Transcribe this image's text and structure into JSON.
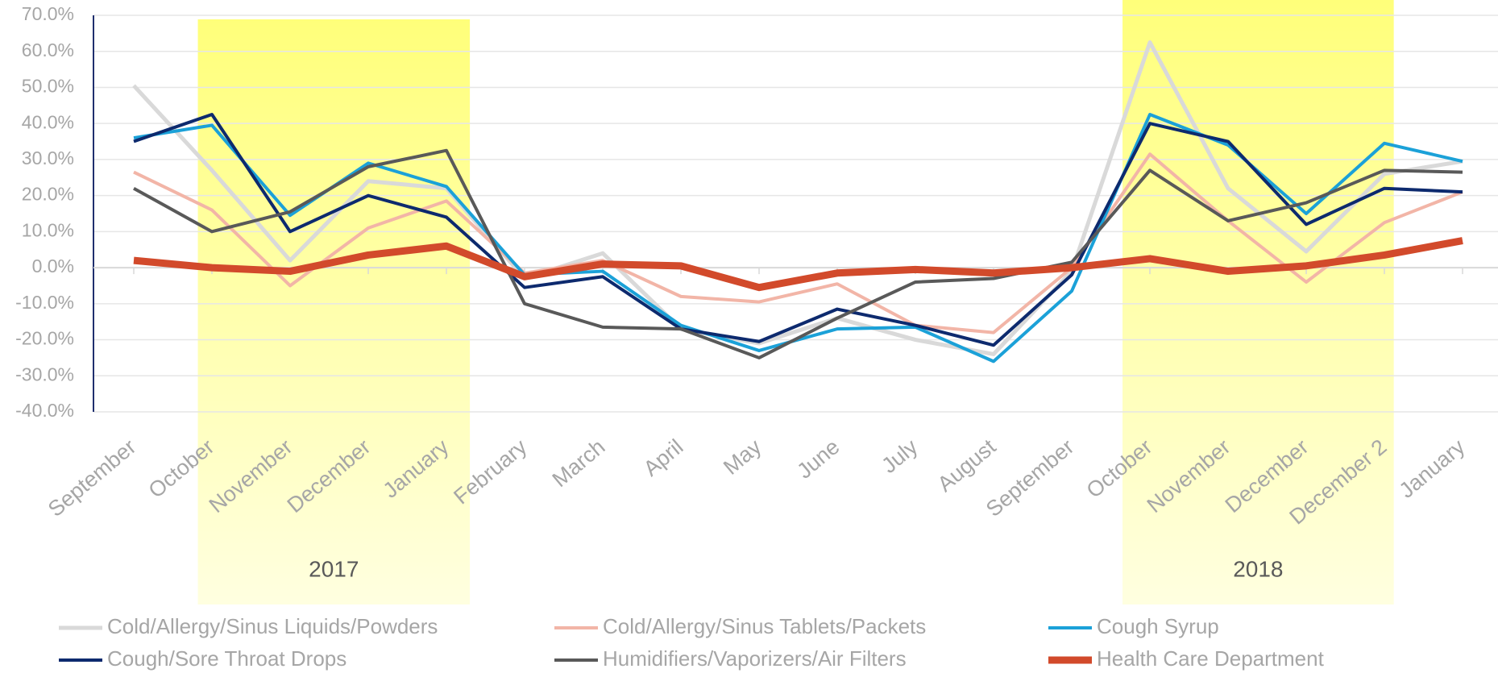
{
  "chart_data": {
    "type": "line",
    "categories": [
      "September",
      "October",
      "November",
      "December",
      "January",
      "February",
      "March",
      "April",
      "May",
      "June",
      "July",
      "August",
      "September",
      "October",
      "November",
      "December",
      "December 2",
      "January"
    ],
    "annotations": [
      "2017",
      "2018"
    ],
    "series": [
      {
        "name": "Cold/Allergy/Sinus Liquids/Powders",
        "color": "#d9d9d9",
        "width": 5,
        "values": [
          50.5,
          27,
          2,
          24,
          22,
          -3,
          4,
          -17,
          -21,
          -14,
          -20,
          -24,
          -1,
          62.5,
          22,
          4.5,
          26,
          29.5
        ]
      },
      {
        "name": "Cold/Allergy/Sinus Tablets/Packets",
        "color": "#f2b5a7",
        "width": 4,
        "values": [
          26.5,
          16,
          -5,
          11,
          18.5,
          -1.5,
          2,
          -8,
          -9.5,
          -4.5,
          -16,
          -18,
          0,
          31.5,
          13,
          -4,
          12.5,
          21
        ]
      },
      {
        "name": "Cough Syrup",
        "color": "#1ba1d8",
        "width": 4,
        "values": [
          36,
          39.5,
          14.5,
          29,
          22.5,
          -2,
          -1,
          -16,
          -23,
          -17,
          -16.5,
          -26,
          -6.5,
          42.5,
          34,
          15,
          34.5,
          29.5
        ]
      },
      {
        "name": "Cough/Sore Throat Drops",
        "color": "#0d2a6e",
        "width": 4,
        "values": [
          35,
          42.5,
          10,
          20,
          14,
          -5.5,
          -2.5,
          -17,
          -20.5,
          -11.5,
          -16,
          -21.5,
          -2,
          40,
          35,
          12,
          22,
          21
        ]
      },
      {
        "name": "Humidifiers/Vaporizers/Air Filters",
        "color": "#595959",
        "width": 4,
        "values": [
          22,
          10,
          15.5,
          28,
          32.5,
          -10,
          -16.5,
          -17,
          -25,
          -14,
          -4,
          -3,
          1.5,
          27,
          13,
          18,
          27,
          26.5
        ]
      },
      {
        "name": "Health Care Department",
        "color": "#d24a2b",
        "width": 9,
        "values": [
          2,
          0,
          -1,
          3.5,
          6,
          -2.5,
          1,
          0.5,
          -5.5,
          -1.5,
          -0.5,
          -1.5,
          0,
          2.5,
          -1,
          0.5,
          3.5,
          7.5
        ]
      }
    ],
    "ylim": [
      -40,
      70
    ],
    "yticks": [
      {
        "value": -40,
        "label": "-40.0%"
      },
      {
        "value": -30,
        "label": "-30.0%"
      },
      {
        "value": -20,
        "label": "-20.0%"
      },
      {
        "value": -10,
        "label": "-10.0%"
      },
      {
        "value": 0,
        "label": "0.0%"
      },
      {
        "value": 10,
        "label": "10.0%"
      },
      {
        "value": 20,
        "label": "20.0%"
      },
      {
        "value": 30,
        "label": "30.0%"
      },
      {
        "value": 40,
        "label": "40.0%"
      },
      {
        "value": 50,
        "label": "50.0%"
      },
      {
        "value": 60,
        "label": "60.0%"
      },
      {
        "value": 70,
        "label": "70.0%"
      }
    ],
    "grid": true,
    "legend": "bottom"
  }
}
